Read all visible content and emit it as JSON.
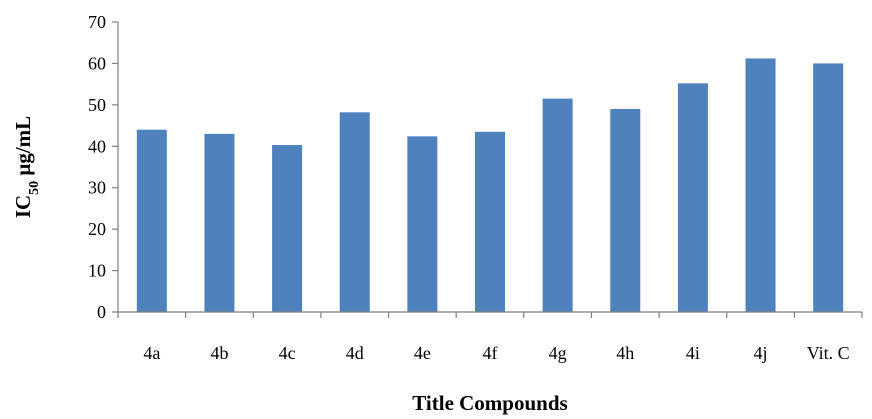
{
  "chart_data": {
    "type": "bar",
    "categories": [
      "4a",
      "4b",
      "4c",
      "4d",
      "4e",
      "4f",
      "4g",
      "4h",
      "4i",
      "4j",
      "Vit. C"
    ],
    "series": [
      {
        "values": [
          44,
          43,
          40.3,
          48.2,
          42.4,
          43.5,
          51.5,
          49,
          55.2,
          61.2,
          60
        ],
        "color": "#4f81bd"
      }
    ],
    "title": "",
    "xlabel": "Title Compounds",
    "ylabel": {
      "prefix": "IC",
      "subscript": "50",
      "suffix": " μg/mL"
    },
    "ylim": [
      0,
      70
    ],
    "yticks": [
      "0",
      "10",
      "20",
      "30",
      "40",
      "50",
      "60",
      "70"
    ],
    "grid": false,
    "legend": "none"
  }
}
